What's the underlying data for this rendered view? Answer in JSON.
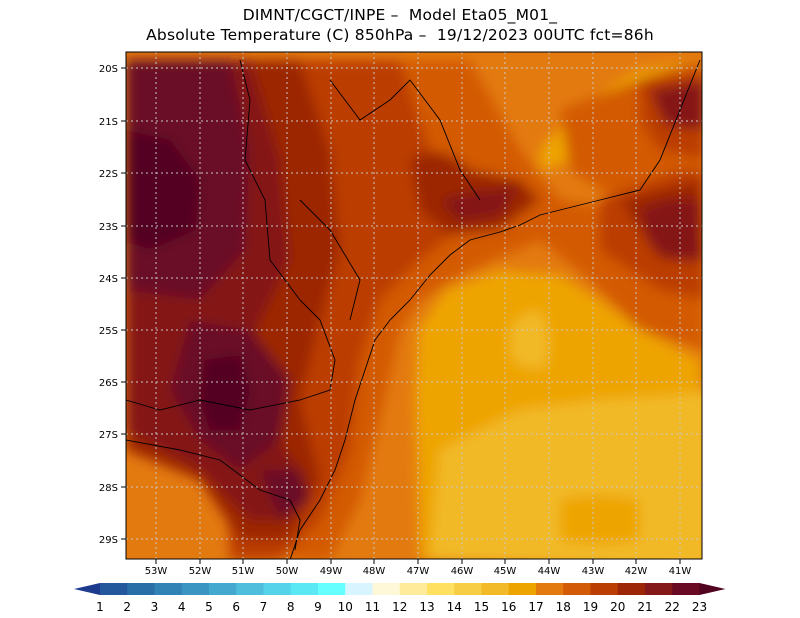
{
  "header": {
    "line1": "DIMNT/CGCT/INPE –  Model Eta05_M01_",
    "line2": "Absolute Temperature (C) 850hPa –  19/12/2023 00UTC fct=86h"
  },
  "map": {
    "lat_labels": [
      "20S",
      "21S",
      "22S",
      "23S",
      "24S",
      "25S",
      "26S",
      "27S",
      "28S",
      "29S"
    ],
    "lon_labels": [
      "53W",
      "52W",
      "51W",
      "50W",
      "49W",
      "48W",
      "47W",
      "46W",
      "45W",
      "44W",
      "43W",
      "42W",
      "41W"
    ],
    "lon_range": [
      -53.7,
      -40.5
    ],
    "lat_range": [
      -29.4,
      -19.75
    ],
    "grid": "dotted"
  },
  "colorbar": {
    "labels": [
      "1",
      "2",
      "3",
      "4",
      "5",
      "6",
      "7",
      "8",
      "9",
      "10",
      "11",
      "12",
      "13",
      "14",
      "15",
      "16",
      "17",
      "18",
      "19",
      "20",
      "21",
      "22",
      "23"
    ],
    "colors": [
      "#1e3a8c",
      "#24589c",
      "#2a6ea8",
      "#3182b5",
      "#3a95c2",
      "#45a9cf",
      "#4fbedc",
      "#55d3ea",
      "#5ae8f5",
      "#66ffff",
      "#d8f4ff",
      "#fff8d8",
      "#ffeb9a",
      "#ffe060",
      "#f7cd45",
      "#f2b928",
      "#eea400",
      "#e37a10",
      "#d35a06",
      "#bb3d04",
      "#9c2606",
      "#851818",
      "#6b0a25",
      "#520320"
    ]
  }
}
